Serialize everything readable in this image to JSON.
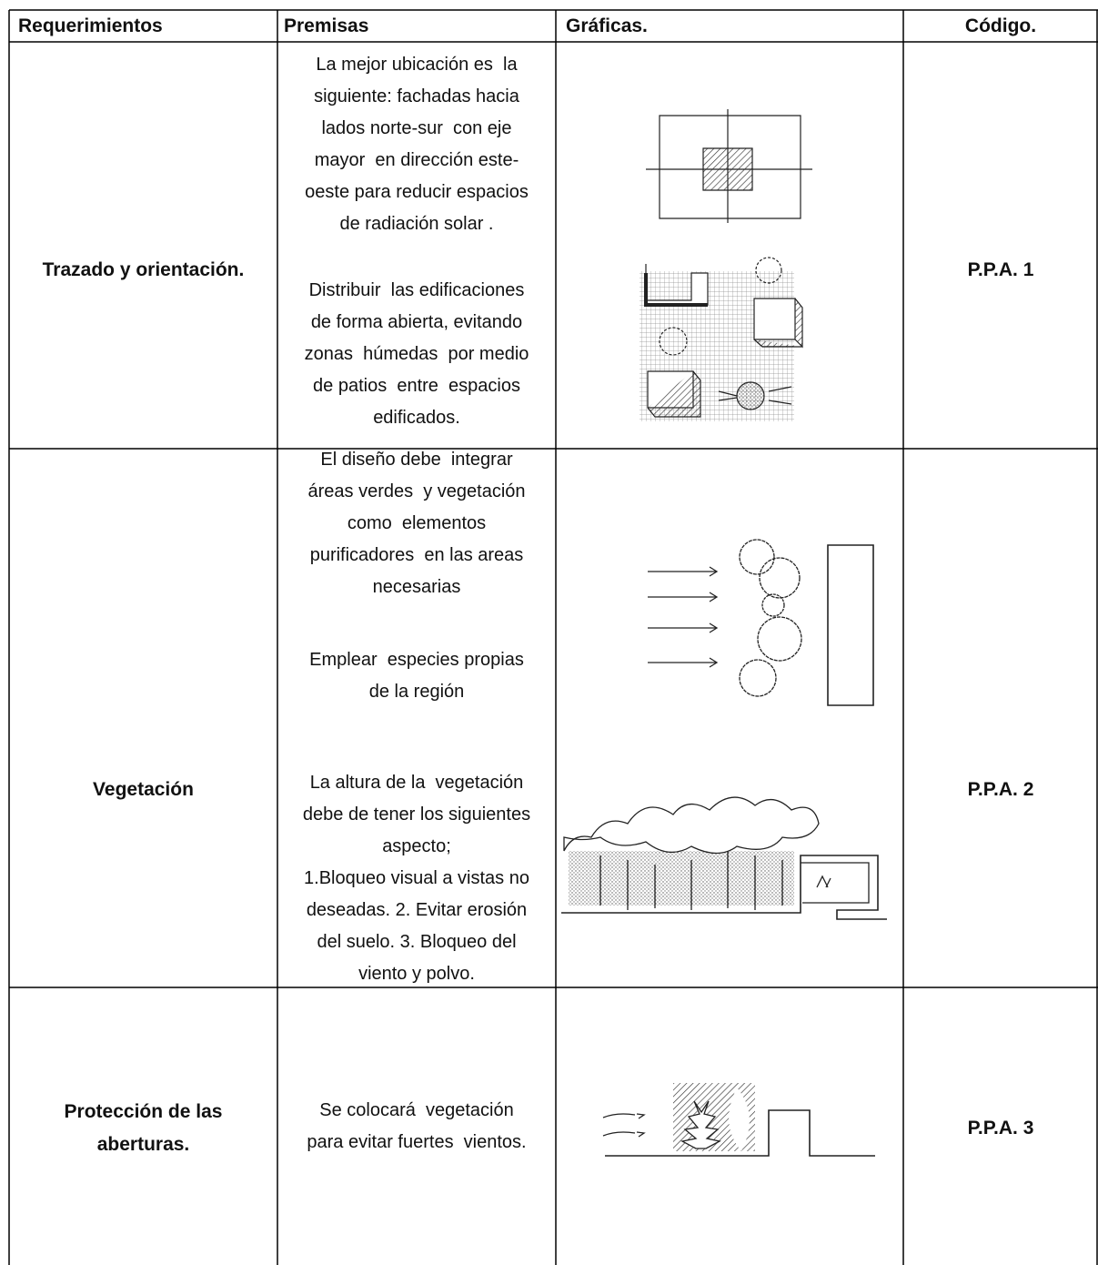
{
  "table": {
    "header": [
      "Requerimientos",
      "Premisas",
      "Gráficas.",
      "Código."
    ],
    "rows": [
      {
        "requirement": [
          "Trazado y orientación."
        ],
        "premises": [
          [
            "La mejor ubicación es  la",
            "siguiente: fachadas hacia",
            "lados norte-sur  con eje",
            "mayor  en dirección este-",
            "oeste para reducir espacios",
            "de radiación solar ."
          ],
          [
            "Distribuir  las edificaciones",
            "de forma abierta, evitando",
            "zonas  húmedas  por medio",
            "de patios  entre  espacios",
            "edificados."
          ]
        ],
        "code": "P.P.A. 1"
      },
      {
        "requirement": [
          "Vegetación"
        ],
        "premises": [
          [
            "El diseño debe  integrar",
            "áreas verdes  y vegetación",
            "como  elementos",
            "purificadores  en las areas",
            "necesarias"
          ],
          [
            "Emplear  especies propias",
            "de la región"
          ],
          [
            "La altura de la  vegetación",
            "debe de tener los siguientes",
            "aspecto;",
            "1.Bloqueo visual a vistas no",
            "deseadas. 2. Evitar erosión",
            "del suelo. 3. Bloqueo del",
            "viento y polvo."
          ]
        ],
        "code": "P.P.A. 2"
      },
      {
        "requirement": [
          "Protección de las",
          "aberturas."
        ],
        "premises": [
          [
            "Se colocará  vegetación",
            "para evitar fuertes  vientos."
          ]
        ],
        "code": "P.P.A. 3"
      }
    ]
  }
}
